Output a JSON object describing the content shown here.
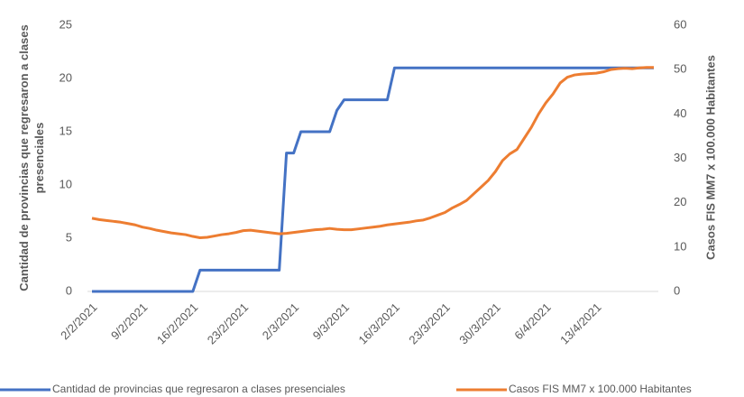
{
  "chart_data": {
    "type": "line",
    "y_label": "Cantidad de provincias que regresaron a clases presenciales",
    "y2_label": "Casos FIS MM7 x 100.000 Habitantes",
    "categories": [
      "2/2/2021",
      null,
      null,
      null,
      null,
      null,
      null,
      "9/2/2021",
      null,
      null,
      null,
      null,
      null,
      null,
      "16/2/2021",
      null,
      null,
      null,
      null,
      null,
      null,
      "23/2/2021",
      null,
      null,
      null,
      null,
      null,
      null,
      "2/3/2021",
      null,
      null,
      null,
      null,
      null,
      null,
      "9/3/2021",
      null,
      null,
      null,
      null,
      null,
      null,
      "16/3/2021",
      null,
      null,
      null,
      null,
      null,
      null,
      "23/3/2021",
      null,
      null,
      null,
      null,
      null,
      null,
      "30/3/2021",
      null,
      null,
      null,
      null,
      null,
      null,
      "6/4/2021",
      null,
      null,
      null,
      null,
      null,
      null,
      "13/4/2021",
      null,
      null,
      null,
      null,
      null,
      null,
      null,
      null
    ],
    "series": [
      {
        "name": "Cantidad de provincias que regresaron a clases presenciales",
        "color": "#4472c4",
        "axis": "y",
        "values": [
          0,
          0,
          0,
          0,
          0,
          0,
          0,
          0,
          0,
          0,
          0,
          0,
          0,
          0,
          0,
          2,
          2,
          2,
          2,
          2,
          2,
          2,
          2,
          2,
          2,
          2,
          2,
          13,
          13,
          15,
          15,
          15,
          15,
          15,
          17,
          18,
          18,
          18,
          18,
          18,
          18,
          18,
          21,
          21,
          21,
          21,
          21,
          21,
          21,
          21,
          21,
          21,
          21,
          21,
          21,
          21,
          21,
          21,
          21,
          21,
          21,
          21,
          21,
          21,
          21,
          21,
          21,
          21,
          21,
          21,
          21,
          21,
          21,
          21,
          21,
          21,
          21,
          21,
          21
        ]
      },
      {
        "name": "Casos FIS MM7 x 100.000 Habitantes",
        "color": "#ed7d31",
        "axis": "y2",
        "values": [
          16.5,
          16.2,
          16,
          15.8,
          15.6,
          15.3,
          15,
          14.5,
          14.2,
          13.8,
          13.5,
          13.2,
          13,
          12.8,
          12.4,
          12.1,
          12.2,
          12.5,
          12.8,
          13,
          13.3,
          13.7,
          13.8,
          13.6,
          13.4,
          13.2,
          13,
          13.1,
          13.3,
          13.5,
          13.7,
          13.9,
          14,
          14.2,
          14,
          13.9,
          13.9,
          14.1,
          14.3,
          14.5,
          14.7,
          15,
          15.2,
          15.4,
          15.6,
          15.9,
          16.1,
          16.6,
          17.2,
          17.8,
          18.8,
          19.6,
          20.5,
          22,
          23.5,
          25,
          27,
          29.5,
          31,
          32,
          34.5,
          37,
          40,
          42.5,
          44.5,
          47,
          48.3,
          48.8,
          49,
          49.1,
          49.2,
          49.5,
          50,
          50.2,
          50.3,
          50.2,
          50.4,
          50.5,
          50.5
        ]
      }
    ],
    "ylim": [
      0,
      25
    ],
    "yticks": [
      0,
      5,
      10,
      15,
      20,
      25
    ],
    "y2lim": [
      0,
      60
    ],
    "y2ticks": [
      0,
      10,
      20,
      30,
      40,
      50,
      60
    ],
    "grid": false,
    "legend": "bottom"
  }
}
